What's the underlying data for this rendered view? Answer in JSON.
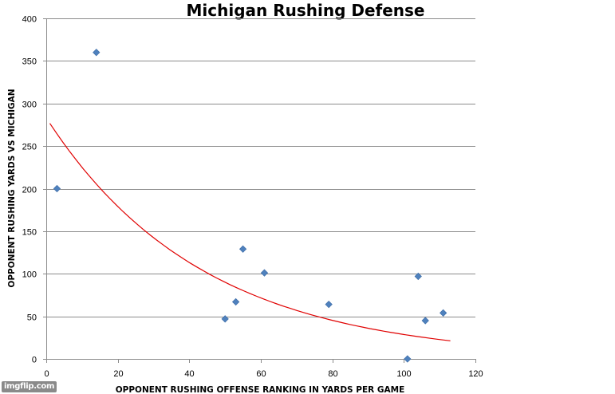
{
  "watermark": "imgflip.com",
  "chart_data": {
    "type": "scatter",
    "title": "Michigan Rushing Defense",
    "xlabel": "OPPONENT RUSHING OFFENSE RANKING IN YARDS PER GAME",
    "ylabel": "OPPONENT RUSHING YARDS VS MICHIGAN",
    "xlim": [
      0,
      120
    ],
    "ylim": [
      0,
      400
    ],
    "xticks": [
      0,
      20,
      40,
      60,
      80,
      100,
      120
    ],
    "yticks": [
      0,
      50,
      100,
      150,
      200,
      250,
      300,
      350,
      400
    ],
    "grid": "horizontal",
    "marker_color": "#4f81bd",
    "trendline_color": "#e00000",
    "series": [
      {
        "points": [
          {
            "x": 3,
            "y": 200
          },
          {
            "x": 14,
            "y": 360
          },
          {
            "x": 50,
            "y": 47
          },
          {
            "x": 53,
            "y": 67
          },
          {
            "x": 55,
            "y": 129
          },
          {
            "x": 61,
            "y": 101
          },
          {
            "x": 79,
            "y": 64
          },
          {
            "x": 101,
            "y": 0
          },
          {
            "x": 104,
            "y": 97
          },
          {
            "x": 106,
            "y": 45
          },
          {
            "x": 111,
            "y": 54
          }
        ]
      }
    ],
    "trendline": {
      "type": "exponential",
      "a": 283,
      "b": -0.0229,
      "x_range": [
        1,
        113
      ]
    }
  }
}
